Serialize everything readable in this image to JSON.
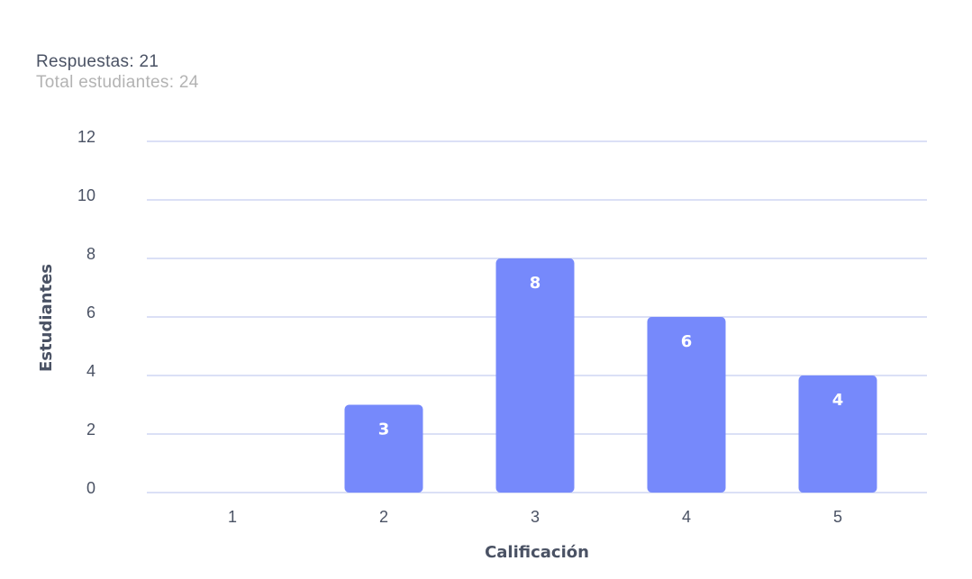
{
  "summary": {
    "responses": "Respuestas: 21",
    "total": "Total estudiantes: 24"
  },
  "colors": {
    "bar": "#7689fb",
    "grid": "#b7c0ec",
    "text": "#4a5264",
    "muted": "#b3b3b3"
  },
  "chart_data": {
    "type": "bar",
    "categories": [
      "1",
      "2",
      "3",
      "4",
      "5"
    ],
    "values": [
      0,
      3,
      8,
      6,
      4
    ],
    "xlabel": "Calificación",
    "ylabel": "Estudiantes",
    "ylim": [
      0,
      12
    ],
    "yticks": [
      0,
      2,
      4,
      6,
      8,
      10,
      12
    ],
    "grid": true,
    "data_labels": true
  }
}
